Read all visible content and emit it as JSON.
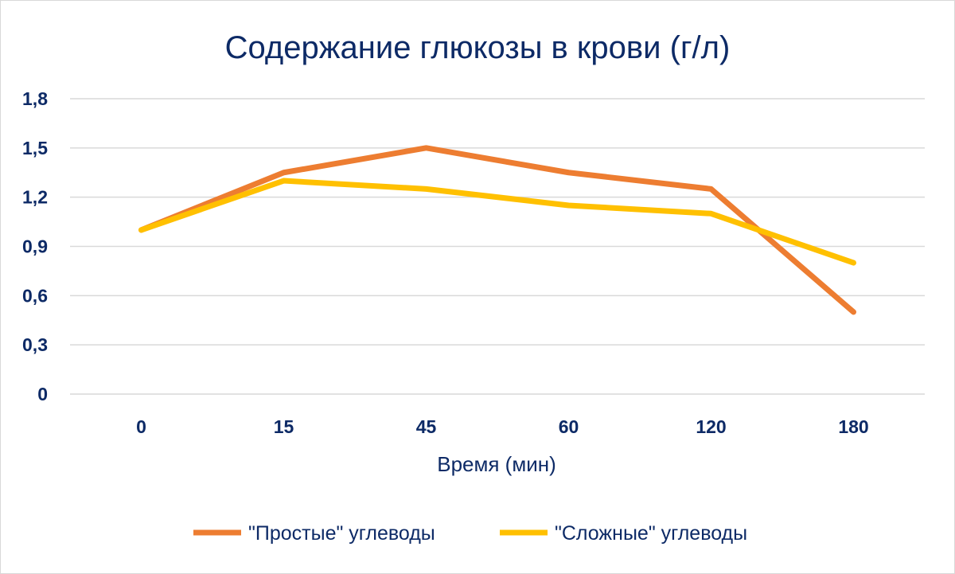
{
  "chart_data": {
    "type": "line",
    "title": "Содержание глюкозы в крови (г/л)",
    "xlabel": "Время (мин)",
    "ylabel": "",
    "categories": [
      "0",
      "15",
      "45",
      "60",
      "120",
      "180"
    ],
    "ylim": [
      0,
      1.8
    ],
    "yticks": [
      "0",
      "0,3",
      "0,6",
      "0,9",
      "1,2",
      "1,5",
      "1,8"
    ],
    "ytick_values": [
      0,
      0.3,
      0.6,
      0.9,
      1.2,
      1.5,
      1.8
    ],
    "grid": true,
    "legend_position": "bottom",
    "series": [
      {
        "name": "\"Простые\" углеводы",
        "color": "#ed7d31",
        "values": [
          1.0,
          1.35,
          1.5,
          1.35,
          1.25,
          0.5
        ]
      },
      {
        "name": "\"Сложные\" углеводы",
        "color": "#ffc000",
        "values": [
          1.0,
          1.3,
          1.25,
          1.15,
          1.1,
          0.8
        ]
      }
    ]
  }
}
